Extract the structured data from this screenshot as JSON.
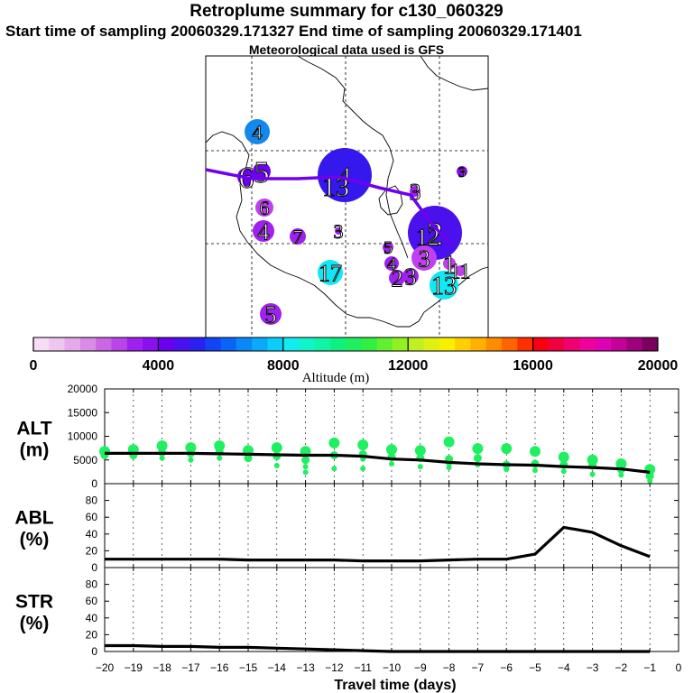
{
  "header": {
    "title": "Retroplume summary for c130_060329",
    "sampling": "Start time of sampling 20060329.171327     End time of sampling 20060329.171401",
    "met": "Meteorological data used is GFS"
  },
  "colorbar": {
    "label": "Altitude (m)",
    "min": 0,
    "max": 20000,
    "tick_values": [
      0,
      4000,
      8000,
      12000,
      16000,
      20000
    ],
    "tick_labels": [
      "0",
      "4000",
      "8000",
      "12000",
      "16000",
      "20000"
    ],
    "colors": [
      "#f6dcf6",
      "#eec6f0",
      "#e4aaea",
      "#d98ce6",
      "#cc66e4",
      "#bb44e8",
      "#a020f0",
      "#8a10f0",
      "#6a00ee",
      "#4a10ee",
      "#2a20f0",
      "#1044f4",
      "#0a64f8",
      "#0a88fa",
      "#0aaafa",
      "#0acefa",
      "#10ecf0",
      "#10f4cc",
      "#10f4a8",
      "#10f080",
      "#20f060",
      "#30f040",
      "#60f030",
      "#90f020",
      "#c0f020",
      "#e0f010",
      "#f8f000",
      "#ffd000",
      "#ffb000",
      "#ff8c00",
      "#ff6400",
      "#ff3000",
      "#f80010",
      "#f00040",
      "#f00070",
      "#f0009c",
      "#e000b4",
      "#c40098",
      "#a0007c",
      "#7a005c"
    ]
  },
  "map": {
    "points": [
      {
        "label": "4",
        "color": "#1488ee"
      },
      {
        "label": "6",
        "color": "#7000f0"
      },
      {
        "label": "5",
        "color": "#7000f0"
      },
      {
        "label": "6",
        "color": "#c040f0"
      },
      {
        "label": "4",
        "color": "#a020f0"
      },
      {
        "label": "7",
        "color": "#a020f0"
      },
      {
        "label": "3",
        "color": "#a020f0"
      },
      {
        "label": "4",
        "color": "#3418ee"
      },
      {
        "label": "13",
        "color": "#3418ee"
      },
      {
        "label": "3",
        "color": "#a020f0"
      },
      {
        "label": "3",
        "color": "#8a10f0"
      },
      {
        "label": "2",
        "color": "#4a10ee"
      },
      {
        "label": "12",
        "color": "#4a10ee"
      },
      {
        "label": "3",
        "color": "#c040f0"
      },
      {
        "label": "5",
        "color": "#a020f0"
      },
      {
        "label": "4",
        "color": "#a020f0"
      },
      {
        "label": "1",
        "color": "#c040f0"
      },
      {
        "label": "11",
        "color": "#c040f0"
      },
      {
        "label": "17",
        "color": "#10e8f4"
      },
      {
        "label": "2",
        "color": "#a020f0"
      },
      {
        "label": "3",
        "color": "#a020f0"
      },
      {
        "label": "13",
        "color": "#10e8f4"
      },
      {
        "label": "5",
        "color": "#a020f0"
      }
    ]
  },
  "chart_data": [
    {
      "type": "line",
      "panel": "ALT",
      "ylabel_top": "ALT",
      "ylabel_bottom": "(m)",
      "ylim": [
        0,
        20000
      ],
      "y_ticks": [
        0,
        5000,
        10000,
        15000,
        20000
      ],
      "y_tick_labels": [
        "0",
        "5000",
        "10000",
        "15000",
        "20000"
      ],
      "x": [
        -20,
        -19,
        -18,
        -17,
        -16,
        -15,
        -14,
        -13,
        -12,
        -11,
        -10,
        -9,
        -8,
        -7,
        -6,
        -5,
        -4,
        -3,
        -2,
        -1
      ],
      "values": [
        6400,
        6400,
        6400,
        6400,
        6300,
        6200,
        6100,
        6000,
        6000,
        5800,
        5200,
        5000,
        4500,
        4200,
        4000,
        3900,
        3600,
        3400,
        3100,
        2400
      ],
      "particle_clusters": [
        {
          "x": -20,
          "alts": [
            6800,
            6000
          ]
        },
        {
          "x": -19,
          "alts": [
            7200,
            6000
          ]
        },
        {
          "x": -18,
          "alts": [
            8000,
            6600,
            5400
          ]
        },
        {
          "x": -17,
          "alts": [
            7600,
            6400,
            5000
          ]
        },
        {
          "x": -16,
          "alts": [
            8000,
            6800,
            5400
          ]
        },
        {
          "x": -15,
          "alts": [
            7000,
            5400
          ]
        },
        {
          "x": -14,
          "alts": [
            7600,
            5800,
            3800
          ]
        },
        {
          "x": -13,
          "alts": [
            6800,
            5000,
            3600,
            2400
          ]
        },
        {
          "x": -12,
          "alts": [
            8600,
            6000,
            3200
          ]
        },
        {
          "x": -11,
          "alts": [
            8200,
            6200,
            5200,
            3200
          ]
        },
        {
          "x": -10,
          "alts": [
            7200,
            5600,
            4200
          ]
        },
        {
          "x": -9,
          "alts": [
            7000,
            5400,
            3600
          ]
        },
        {
          "x": -8,
          "alts": [
            8800,
            5200,
            4200,
            3400
          ]
        },
        {
          "x": -7,
          "alts": [
            7400,
            5400,
            4000
          ]
        },
        {
          "x": -6,
          "alts": [
            7400,
            4000,
            3000
          ]
        },
        {
          "x": -5,
          "alts": [
            6800,
            4200,
            2800
          ]
        },
        {
          "x": -4,
          "alts": [
            5600,
            4000,
            2600
          ]
        },
        {
          "x": -3,
          "alts": [
            5000,
            3800,
            2000
          ]
        },
        {
          "x": -2,
          "alts": [
            4200,
            3000,
            1800
          ]
        },
        {
          "x": -1,
          "alts": [
            3000,
            1600,
            600
          ]
        }
      ]
    },
    {
      "type": "line",
      "panel": "ABL",
      "ylabel_top": "ABL",
      "ylabel_bottom": "(%)",
      "ylim": [
        0,
        100
      ],
      "y_ticks": [
        0,
        20,
        40,
        60,
        80
      ],
      "y_tick_labels": [
        "0",
        "20",
        "40",
        "60",
        "80"
      ],
      "x": [
        -20,
        -19,
        -18,
        -17,
        -16,
        -15,
        -14,
        -13,
        -12,
        -11,
        -10,
        -9,
        -8,
        -7,
        -6,
        -5,
        -4,
        -3,
        -2,
        -1
      ],
      "values": [
        10,
        10,
        10,
        10,
        10,
        9,
        9,
        9,
        9,
        8,
        8,
        8,
        9,
        10,
        10,
        16,
        48,
        42,
        26,
        13
      ]
    },
    {
      "type": "line",
      "panel": "STR",
      "ylabel_top": "STR",
      "ylabel_bottom": "(%)",
      "ylim": [
        0,
        100
      ],
      "y_ticks": [
        0,
        20,
        40,
        60,
        80
      ],
      "y_tick_labels": [
        "0",
        "20",
        "40",
        "60",
        "80"
      ],
      "x": [
        -20,
        -19,
        -18,
        -17,
        -16,
        -15,
        -14,
        -13,
        -12,
        -11,
        -10,
        -9,
        -8,
        -7,
        -6,
        -5,
        -4,
        -3,
        -2,
        -1
      ],
      "values": [
        7,
        7,
        6,
        6,
        5,
        5,
        4,
        3,
        2,
        1,
        0,
        0,
        0,
        0,
        0,
        0,
        0,
        0,
        0,
        0
      ]
    }
  ],
  "xaxis": {
    "label": "Travel time (days)",
    "ticks": [
      -20,
      -19,
      -18,
      -17,
      -16,
      -15,
      -14,
      -13,
      -12,
      -11,
      -10,
      -9,
      -8,
      -7,
      -6,
      -5,
      -4,
      -3,
      -2,
      -1,
      0
    ],
    "tick_labels": [
      "−20",
      "−19",
      "−18",
      "−17",
      "−16",
      "−15",
      "−14",
      "−13",
      "−12",
      "−11",
      "−10",
      "−9",
      "−8",
      "−7",
      "−6",
      "−5",
      "−4",
      "−3",
      "−2",
      "−1",
      "0"
    ]
  }
}
